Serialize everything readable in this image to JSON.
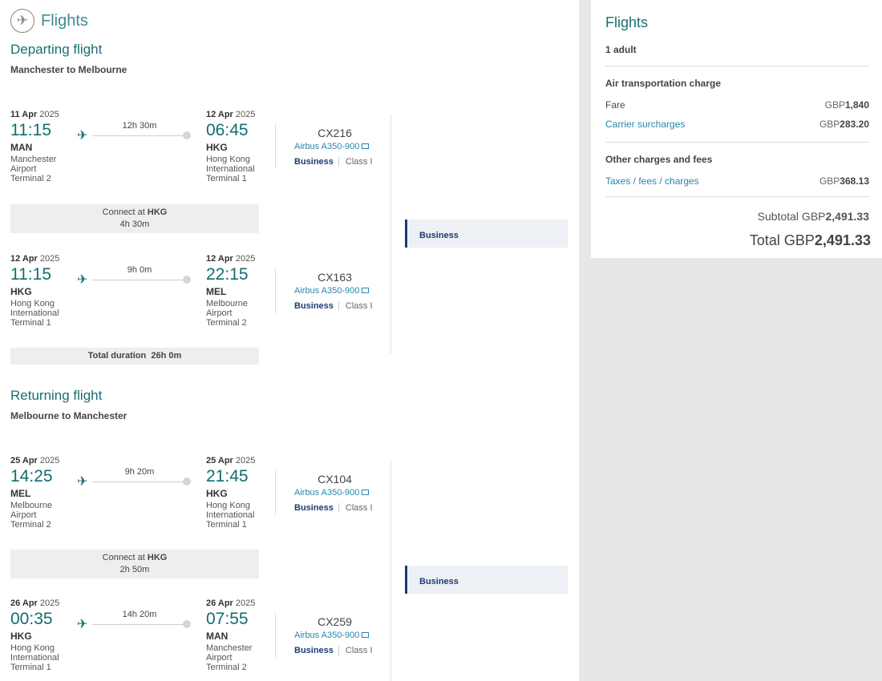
{
  "header": {
    "title": "Flights",
    "icon": "airplane-icon"
  },
  "departing": {
    "title": "Departing flight",
    "route": "Manchester to Melbourne",
    "segments": [
      {
        "dep_date_day": "11 Apr",
        "dep_date_year": "2025",
        "dep_time": "11:15",
        "dep_code": "MAN",
        "dep_airport": [
          "Manchester",
          "Airport",
          "Terminal 2"
        ],
        "duration": "12h 30m",
        "arr_date_day": "12 Apr",
        "arr_date_year": "2025",
        "arr_time": "06:45",
        "arr_code": "HKG",
        "arr_airport": [
          "Hong Kong",
          "International",
          "Terminal 1"
        ],
        "flight_no": "CX216",
        "aircraft": "Airbus A350-900",
        "cabin": "Business",
        "class": "Class I"
      },
      {
        "dep_date_day": "12 Apr",
        "dep_date_year": "2025",
        "dep_time": "11:15",
        "dep_code": "HKG",
        "dep_airport": [
          "Hong Kong",
          "International",
          "Terminal 1"
        ],
        "duration": "9h 0m",
        "arr_date_day": "12 Apr",
        "arr_date_year": "2025",
        "arr_time": "22:15",
        "arr_code": "MEL",
        "arr_airport": [
          "Melbourne",
          "Airport",
          "Terminal 2"
        ],
        "flight_no": "CX163",
        "aircraft": "Airbus A350-900",
        "cabin": "Business",
        "class": "Class I"
      }
    ],
    "connect": {
      "label": "Connect at",
      "airport": "HKG",
      "duration": "4h 30m"
    },
    "total_label": "Total duration",
    "total": "26h 0m",
    "cabin_bar": "Business"
  },
  "returning": {
    "title": "Returning flight",
    "route": "Melbourne to Manchester",
    "segments": [
      {
        "dep_date_day": "25 Apr",
        "dep_date_year": "2025",
        "dep_time": "14:25",
        "dep_code": "MEL",
        "dep_airport": [
          "Melbourne",
          "Airport",
          "Terminal 2"
        ],
        "duration": "9h 20m",
        "arr_date_day": "25 Apr",
        "arr_date_year": "2025",
        "arr_time": "21:45",
        "arr_code": "HKG",
        "arr_airport": [
          "Hong Kong",
          "International",
          "Terminal 1"
        ],
        "flight_no": "CX104",
        "aircraft": "Airbus A350-900",
        "cabin": "Business",
        "class": "Class I"
      },
      {
        "dep_date_day": "26 Apr",
        "dep_date_year": "2025",
        "dep_time": "00:35",
        "dep_code": "HKG",
        "dep_airport": [
          "Hong Kong",
          "International",
          "Terminal 1"
        ],
        "duration": "14h 20m",
        "arr_date_day": "26 Apr",
        "arr_date_year": "2025",
        "arr_time": "07:55",
        "arr_code": "MAN",
        "arr_airport": [
          "Manchester",
          "Airport",
          "Terminal 2"
        ],
        "flight_no": "CX259",
        "aircraft": "Airbus A350-900",
        "cabin": "Business",
        "class": "Class I"
      }
    ],
    "connect": {
      "label": "Connect at",
      "airport": "HKG",
      "duration": "2h 50m"
    },
    "cabin_bar": "Business"
  },
  "summary": {
    "title": "Flights",
    "passengers": "1 adult",
    "air_title": "Air transportation charge",
    "fare_label": "Fare",
    "fare_cur": "GBP",
    "fare_amt": "1,840",
    "surcharge_label": "Carrier surcharges",
    "surcharge_cur": "GBP",
    "surcharge_amt": "283.20",
    "other_title": "Other charges and fees",
    "taxes_label": "Taxes / fees / charges",
    "taxes_cur": "GBP",
    "taxes_amt": "368.13",
    "subtotal_label": "Subtotal GBP",
    "subtotal_amt": "2,491.33",
    "total_label": "Total GBP",
    "total_amt": "2,491.33"
  },
  "colors": {
    "teal": "#106d70",
    "navy": "#1c3c73",
    "link": "#2a86ad"
  }
}
